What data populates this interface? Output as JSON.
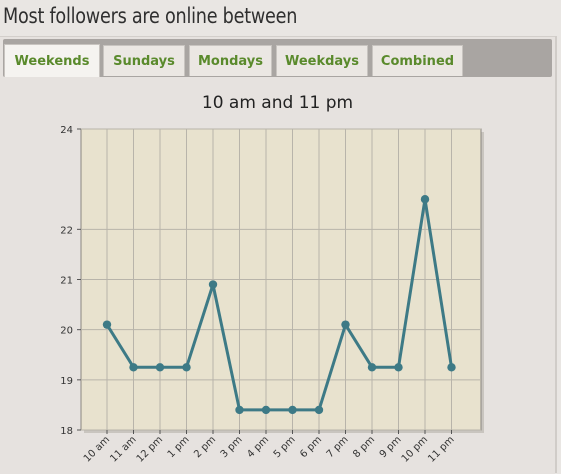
{
  "heading": "Most followers are online between",
  "tabs": [
    {
      "label": "Weekends",
      "active": true
    },
    {
      "label": "Sundays",
      "active": false
    },
    {
      "label": "Mondays",
      "active": false
    },
    {
      "label": "Weekdays",
      "active": false
    },
    {
      "label": "Combined",
      "active": false
    }
  ],
  "colors": {
    "accent_text": "#5a8a2c",
    "plot_background": "#e8e2ce",
    "line": "#3d7a86",
    "grid": "#b8b4aa"
  },
  "chart_data": {
    "type": "line",
    "title": "10 am and 11 pm",
    "xlabel": "",
    "ylabel": "",
    "categories": [
      "10 am",
      "11 am",
      "12 pm",
      "1 pm",
      "2 pm",
      "3 pm",
      "4 pm",
      "5 pm",
      "6 pm",
      "7 pm",
      "8 pm",
      "9 pm",
      "10 pm",
      "11 pm"
    ],
    "series": [
      {
        "values": [
          20.1,
          19.25,
          19.25,
          19.25,
          20.9,
          18.4,
          18.4,
          18.4,
          18.4,
          20.1,
          19.25,
          19.25,
          22.6,
          19.25
        ]
      }
    ],
    "yticks": [
      18,
      19,
      20,
      21,
      22,
      24
    ],
    "ylim": [
      18,
      24
    ],
    "grid": true,
    "legend": "none"
  }
}
